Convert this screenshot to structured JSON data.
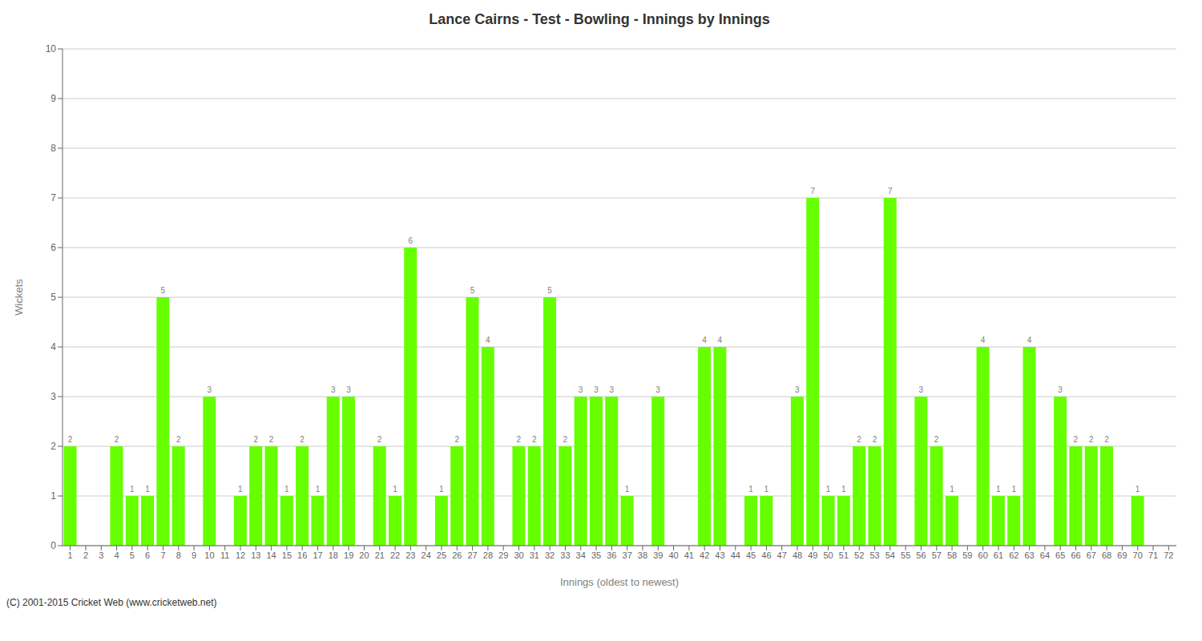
{
  "chart_data": {
    "type": "bar",
    "title": "Lance Cairns - Test - Bowling - Innings by Innings",
    "x_label": "Innings (oldest to newest)",
    "y_label": "Wickets",
    "annotations": [
      "(C) 2001-2015 Cricket Web (www.cricketweb.net)"
    ],
    "categories": [
      "1",
      "2",
      "3",
      "4",
      "5",
      "6",
      "7",
      "8",
      "9",
      "10",
      "11",
      "12",
      "13",
      "14",
      "15",
      "16",
      "17",
      "18",
      "19",
      "20",
      "21",
      "22",
      "23",
      "24",
      "25",
      "26",
      "27",
      "28",
      "29",
      "30",
      "31",
      "32",
      "33",
      "34",
      "35",
      "36",
      "37",
      "38",
      "39",
      "40",
      "41",
      "42",
      "43",
      "44",
      "45",
      "46",
      "47",
      "48",
      "49",
      "50",
      "51",
      "52",
      "53",
      "54",
      "55",
      "56",
      "57",
      "58",
      "59",
      "60",
      "61",
      "62",
      "63",
      "64",
      "65",
      "66",
      "67",
      "68",
      "69",
      "70",
      "71",
      "72"
    ],
    "values": [
      2,
      0,
      0,
      2,
      1,
      1,
      5,
      2,
      0,
      3,
      0,
      1,
      2,
      2,
      1,
      2,
      1,
      3,
      3,
      0,
      2,
      1,
      6,
      0,
      1,
      2,
      5,
      4,
      0,
      2,
      2,
      5,
      2,
      3,
      3,
      3,
      1,
      0,
      3,
      0,
      0,
      4,
      4,
      0,
      1,
      1,
      0,
      3,
      7,
      1,
      1,
      2,
      2,
      7,
      0,
      3,
      2,
      1,
      0,
      4,
      1,
      1,
      4,
      0,
      3,
      2,
      2,
      2,
      0,
      1,
      0,
      0
    ],
    "color": "#66FF00",
    "ylim": [
      0,
      10
    ],
    "yticks": [
      0,
      1,
      2,
      3,
      4,
      5,
      6,
      7,
      8,
      9,
      10
    ],
    "grid": true,
    "data_labels": true
  }
}
